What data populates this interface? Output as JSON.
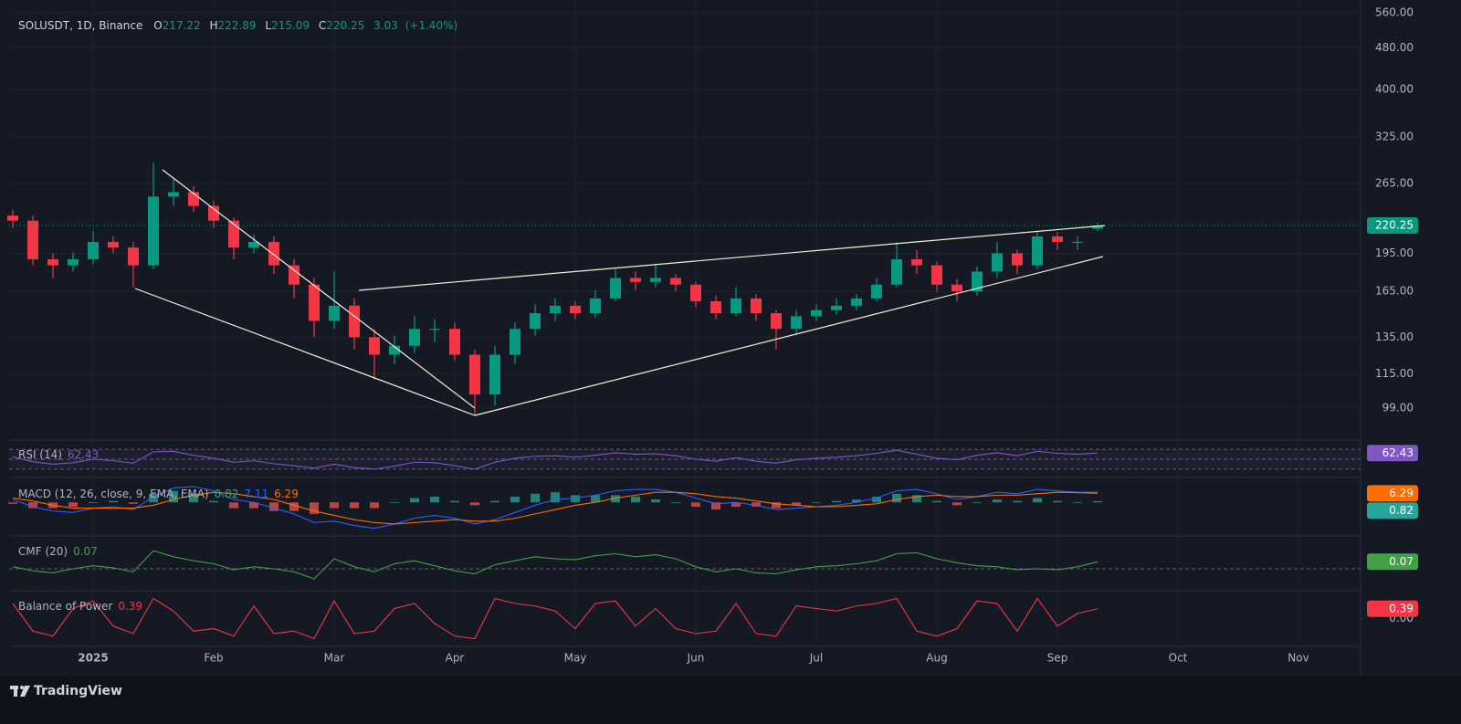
{
  "header": {
    "symbol": "SOLUSDT, 1D, Binance",
    "o_label": "O",
    "open": 217.22,
    "h_label": "H",
    "high": 222.89,
    "l_label": "L",
    "low": 215.09,
    "c_label": "C",
    "close": 220.25,
    "change": 3.03,
    "change_pct": {
      "value": 1.4,
      "label": "(+1.40%)"
    }
  },
  "chart_data": [
    {
      "type": "candlestick",
      "categories": [
        null,
        null,
        null,
        null,
        "2025",
        null,
        null,
        null,
        null,
        null,
        "Feb",
        null,
        null,
        null,
        null,
        null,
        "Mar",
        null,
        null,
        null,
        null,
        null,
        "Apr",
        null,
        null,
        null,
        null,
        null,
        "May",
        null,
        null,
        null,
        null,
        null,
        "Jun",
        null,
        null,
        null,
        null,
        null,
        "Jul",
        null,
        null,
        null,
        null,
        null,
        "Aug",
        null,
        null,
        null,
        null,
        null,
        "Sep",
        null,
        null,
        null,
        null,
        null,
        "Oct",
        null,
        null,
        null,
        null,
        null,
        "Nov",
        null,
        null,
        null
      ],
      "open": [
        230,
        225,
        190,
        185,
        190,
        205,
        200,
        185,
        250,
        255,
        240,
        225,
        200,
        205,
        185,
        170,
        145,
        155,
        135,
        125,
        130,
        140,
        140,
        125,
        105,
        125,
        140,
        150,
        155,
        150,
        160,
        175,
        172,
        175,
        170,
        158,
        150,
        160,
        150,
        140,
        148,
        152,
        155,
        160,
        170,
        190,
        185,
        170,
        165,
        180,
        195,
        185,
        210,
        205,
        217.22,
        null,
        null,
        null,
        null,
        null,
        null,
        null,
        null,
        null,
        null,
        null,
        null,
        null
      ],
      "high": [
        236,
        230,
        195,
        196,
        215,
        210,
        205,
        290,
        270,
        262,
        245,
        228,
        212,
        210,
        190,
        175,
        180,
        160,
        140,
        136,
        148,
        146,
        144,
        128,
        130,
        144,
        156,
        160,
        158,
        166,
        182,
        180,
        186,
        178,
        172,
        162,
        168,
        163,
        152,
        152,
        156,
        160,
        163,
        175,
        205,
        198,
        188,
        174,
        184,
        205,
        198,
        215,
        214,
        210,
        222.89,
        null,
        null,
        null,
        null,
        null,
        null,
        null,
        null,
        null,
        null,
        null,
        null,
        null
      ],
      "low": [
        218,
        185,
        175,
        180,
        186,
        195,
        168,
        182,
        240,
        234,
        218,
        190,
        195,
        178,
        160,
        135,
        140,
        128,
        112,
        120,
        126,
        132,
        122,
        96,
        100,
        120,
        136,
        145,
        146,
        147,
        158,
        166,
        168,
        165,
        154,
        146,
        148,
        145,
        128,
        136,
        145,
        149,
        152,
        158,
        168,
        178,
        165,
        158,
        162,
        175,
        178,
        182,
        198,
        198,
        215.09,
        null,
        null,
        null,
        null,
        null,
        null,
        null,
        null,
        null,
        null,
        null,
        null,
        null
      ],
      "close": [
        225,
        190,
        185,
        190,
        205,
        200,
        185,
        250,
        255,
        240,
        225,
        200,
        205,
        185,
        170,
        145,
        155,
        135,
        125,
        130,
        140,
        140,
        125,
        105,
        125,
        140,
        150,
        155,
        150,
        160,
        175,
        172,
        175,
        170,
        158,
        150,
        160,
        150,
        140,
        148,
        152,
        155,
        160,
        170,
        190,
        185,
        170,
        165,
        180,
        195,
        185,
        210,
        205,
        205,
        220.25,
        null,
        null,
        null,
        null,
        null,
        null,
        null,
        null,
        null,
        null,
        null,
        null,
        null
      ],
      "up_color": "#089981",
      "down_color": "#f23645",
      "log_scale": true,
      "grid": true,
      "ylim": [
        86,
        592
      ],
      "yticks": [
        {
          "value": 99,
          "label": "99.00"
        },
        {
          "value": 115,
          "label": "115.00"
        },
        {
          "value": 135,
          "label": "135.00"
        },
        {
          "value": 165,
          "label": "165.00"
        },
        {
          "value": 195,
          "label": "195.00"
        },
        {
          "value": 265,
          "label": "265.00"
        },
        {
          "value": 325,
          "label": "325.00"
        },
        {
          "value": 400,
          "label": "400.00"
        },
        {
          "value": 480,
          "label": "480.00"
        },
        {
          "value": 560,
          "label": "560.00"
        }
      ],
      "last_price": 220.25
    },
    {
      "type": "line",
      "title": "RSI (14)",
      "color": "#7e57c2",
      "ylim": [
        15,
        85
      ],
      "bands": [
        70,
        50,
        30
      ],
      "values": [
        55,
        45,
        40,
        43,
        50,
        47,
        42,
        65,
        66,
        58,
        52,
        44,
        47,
        41,
        37,
        32,
        40,
        33,
        30,
        36,
        44,
        43,
        37,
        30,
        44,
        52,
        56,
        57,
        54,
        58,
        63,
        60,
        61,
        57,
        50,
        46,
        53,
        46,
        42,
        49,
        52,
        54,
        57,
        62,
        68,
        60,
        52,
        49,
        58,
        63,
        57,
        66,
        62,
        60,
        62.43,
        null,
        null,
        null,
        null,
        null,
        null,
        null,
        null,
        null,
        null,
        null,
        null,
        null
      ]
    },
    {
      "type": "macd",
      "title": "MACD (12, 26, close, 9, EMA, EMA)",
      "ylim": [
        -22,
        16
      ],
      "series": [
        {
          "style": "histogram",
          "color": "#26a69a",
          "negative_color": "#ef5350",
          "values": [
            -1,
            -4,
            -4,
            -3,
            0,
            1,
            -1,
            6,
            8,
            6,
            1,
            -4,
            -4,
            -6,
            -6,
            -8,
            -4,
            -4,
            -4,
            0,
            3,
            4,
            1,
            -2,
            1,
            4,
            6,
            7,
            5,
            5,
            5,
            4,
            2,
            0,
            -3,
            -5,
            -3,
            -3,
            -4,
            -2,
            0,
            1,
            2,
            4,
            6,
            5,
            1,
            -2,
            0,
            2,
            1,
            3,
            1,
            0.2,
            0.82,
            null,
            null,
            null,
            null,
            null,
            null,
            null,
            null,
            null,
            null,
            null,
            null,
            null
          ]
        },
        {
          "style": "line",
          "color": "#2962ff",
          "values": [
            2,
            -3,
            -6,
            -7,
            -4,
            -3,
            -5,
            4,
            10,
            11,
            8,
            2,
            0,
            -4,
            -8,
            -14,
            -13,
            -16,
            -18,
            -15,
            -11,
            -9,
            -11,
            -15,
            -12,
            -7,
            -2,
            2,
            3,
            5,
            8,
            9,
            9,
            7,
            3,
            -1,
            0,
            -2,
            -5,
            -4,
            -3,
            -2,
            0,
            3,
            8,
            9,
            6,
            2,
            4,
            7,
            6,
            9,
            8,
            7,
            7.11,
            null,
            null,
            null,
            null,
            null,
            null,
            null,
            null,
            null,
            null,
            null,
            null,
            null
          ]
        },
        {
          "style": "line",
          "color": "#ff6d00",
          "values": [
            3,
            1,
            -2,
            -4,
            -4,
            -4,
            -4,
            -2,
            2,
            5,
            7,
            6,
            4,
            2,
            -2,
            -6,
            -9,
            -12,
            -14,
            -15,
            -14,
            -13,
            -12,
            -13,
            -13,
            -11,
            -8,
            -5,
            -2,
            0,
            3,
            5,
            7,
            7,
            6,
            4,
            3,
            1,
            -1,
            -2,
            -3,
            -3,
            -2,
            -1,
            2,
            4,
            5,
            4,
            4,
            5,
            5,
            6,
            7,
            6.8,
            6.29,
            null,
            null,
            null,
            null,
            null,
            null,
            null,
            null,
            null,
            null,
            null,
            null,
            null
          ]
        }
      ]
    },
    {
      "type": "line",
      "title": "CMF (20)",
      "color": "#43a047",
      "ylim": [
        -0.2,
        0.3
      ],
      "baseline": 0,
      "values": [
        0.02,
        -0.02,
        -0.04,
        0,
        0.03,
        0.01,
        -0.03,
        0.18,
        0.12,
        0.08,
        0.05,
        -0.01,
        0.02,
        0,
        -0.03,
        -0.1,
        0.1,
        0.02,
        -0.03,
        0.05,
        0.08,
        0.03,
        -0.02,
        -0.05,
        0.04,
        0.08,
        0.12,
        0.1,
        0.09,
        0.13,
        0.15,
        0.12,
        0.14,
        0.1,
        0.02,
        -0.03,
        0,
        -0.04,
        -0.05,
        -0.01,
        0.02,
        0.03,
        0.05,
        0.08,
        0.15,
        0.16,
        0.1,
        0.06,
        0.03,
        0.02,
        -0.01,
        0,
        -0.01,
        0.02,
        0.07,
        null,
        null,
        null,
        null,
        null,
        null,
        null,
        null,
        null,
        null,
        null,
        null,
        null
      ]
    },
    {
      "type": "line",
      "title": "Balance of Power",
      "color": "#f23645",
      "ylim": [
        -1,
        1
      ],
      "yticks": [
        {
          "value": 0,
          "label": "0.00"
        }
      ],
      "values": [
        0.6,
        -0.5,
        -0.7,
        0.4,
        0.7,
        -0.3,
        -0.6,
        0.8,
        0.3,
        -0.5,
        -0.4,
        -0.7,
        0.5,
        -0.6,
        -0.5,
        -0.8,
        0.7,
        -0.6,
        -0.5,
        0.4,
        0.6,
        -0.2,
        -0.7,
        -0.8,
        0.8,
        0.6,
        0.5,
        0.3,
        -0.4,
        0.6,
        0.7,
        -0.3,
        0.4,
        -0.4,
        -0.6,
        -0.5,
        0.6,
        -0.6,
        -0.7,
        0.5,
        0.4,
        0.3,
        0.5,
        0.6,
        0.8,
        -0.5,
        -0.7,
        -0.4,
        0.7,
        0.6,
        -0.5,
        0.8,
        -0.3,
        0.2,
        0.39,
        null,
        null,
        null,
        null,
        null,
        null,
        null,
        null,
        null,
        null,
        null,
        null,
        null
      ]
    }
  ],
  "footer": {
    "brand": "TradingView"
  }
}
